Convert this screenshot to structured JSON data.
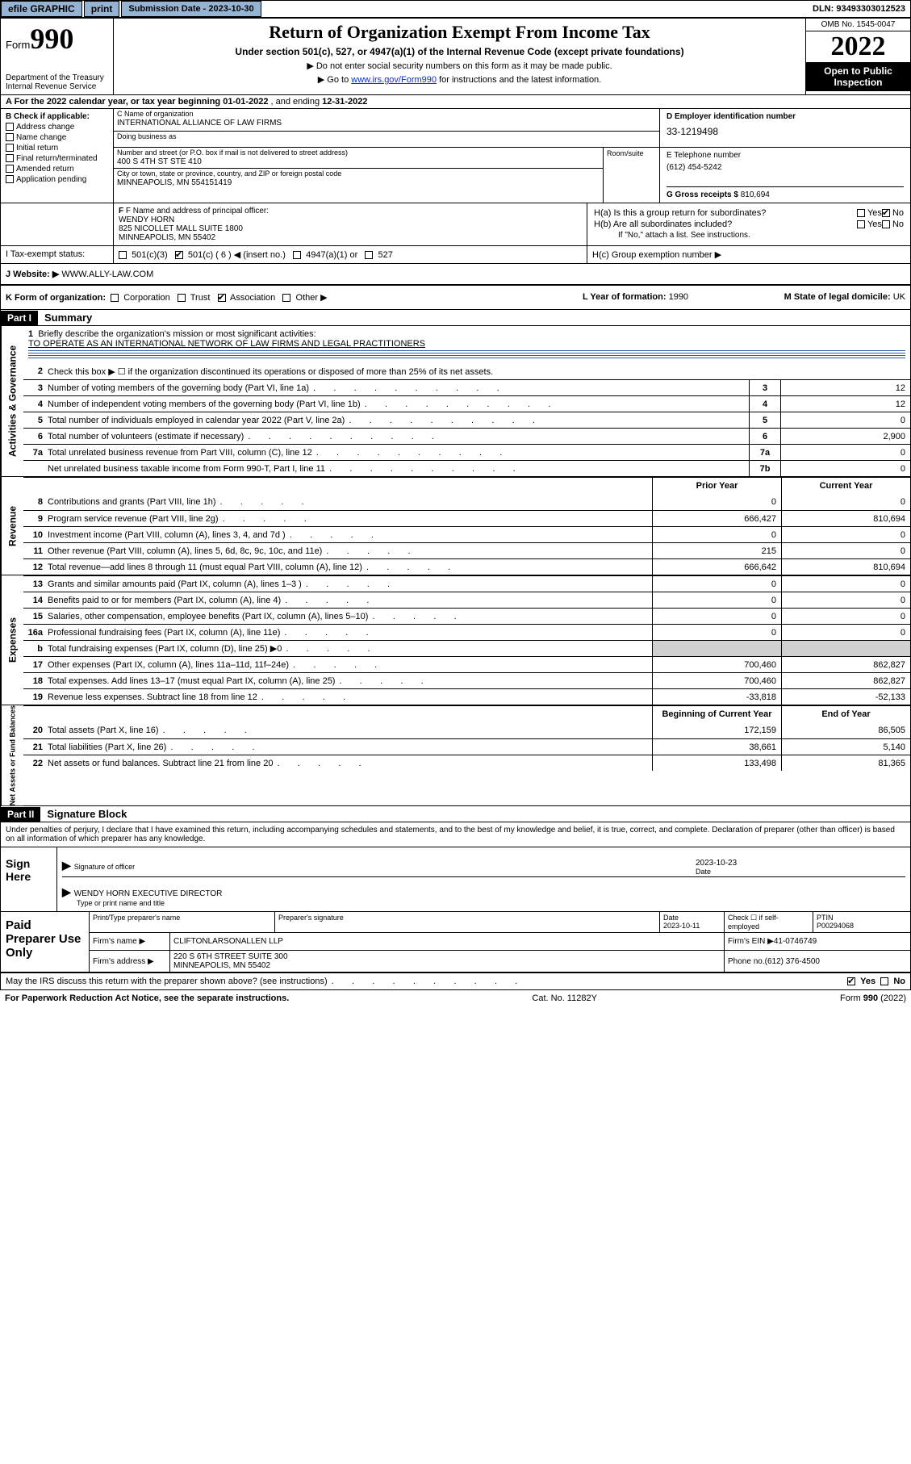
{
  "topbar": {
    "efile": "efile GRAPHIC",
    "print": "print",
    "submission": "Submission Date - 2023-10-30",
    "dln": "DLN: 93493303012523"
  },
  "header": {
    "form_label": "Form",
    "form_num": "990",
    "dept": "Department of the Treasury",
    "irs": "Internal Revenue Service",
    "title": "Return of Organization Exempt From Income Tax",
    "sub1": "Under section 501(c), 527, or 4947(a)(1) of the Internal Revenue Code (except private foundations)",
    "sub2": "▶ Do not enter social security numbers on this form as it may be made public.",
    "sub3_pre": "▶ Go to ",
    "sub3_link": "www.irs.gov/Form990",
    "sub3_post": " for instructions and the latest information.",
    "omb": "OMB No. 1545-0047",
    "year": "2022",
    "open": "Open to Public Inspection"
  },
  "period": {
    "label_a": "A For the 2022 calendar year, or tax year beginning ",
    "begin": "01-01-2022",
    "mid": " , and ending ",
    "end": "12-31-2022"
  },
  "checkB": {
    "label": "B Check if applicable:",
    "items": [
      "Address change",
      "Name change",
      "Initial return",
      "Final return/terminated",
      "Amended return",
      "Application pending"
    ]
  },
  "org": {
    "name_lbl": "C Name of organization",
    "name": "INTERNATIONAL ALLIANCE OF LAW FIRMS",
    "dba_lbl": "Doing business as",
    "addr_lbl": "Number and street (or P.O. box if mail is not delivered to street address)",
    "addr": "400 S 4TH ST STE 410",
    "room_lbl": "Room/suite",
    "city_lbl": "City or town, state or province, country, and ZIP or foreign postal code",
    "city": "MINNEAPOLIS, MN  554151419",
    "ein_lbl": "D Employer identification number",
    "ein": "33-1219498",
    "tel_lbl": "E Telephone number",
    "tel": "(612) 454-5242",
    "gross_lbl": "G Gross receipts $",
    "gross": "810,694"
  },
  "officer": {
    "lbl": "F Name and address of principal officer:",
    "name": "WENDY HORN",
    "addr1": "825 NICOLLET MALL SUITE 1800",
    "addr2": "MINNEAPOLIS, MN  55402"
  },
  "groupH": {
    "ha": "H(a)  Is this a group return for subordinates?",
    "hb": "H(b)  Are all subordinates included?",
    "hb_note": "If \"No,\" attach a list. See instructions.",
    "hc": "H(c)  Group exemption number ▶"
  },
  "status": {
    "lbl": "I    Tax-exempt status:",
    "c3": "501(c)(3)",
    "c6": "501(c) ( 6 ) ◀ (insert no.)",
    "a1": "4947(a)(1) or",
    "s527": "527"
  },
  "website": {
    "lbl": "J   Website: ▶",
    "val": "WWW.ALLY-LAW.COM"
  },
  "kform": {
    "lbl": "K Form of organization:",
    "corp": "Corporation",
    "trust": "Trust",
    "assoc": "Association",
    "other": "Other ▶",
    "yr_lbl": "L Year of formation:",
    "yr": "1990",
    "dom_lbl": "M State of legal domicile:",
    "dom": "UK"
  },
  "partI": {
    "hdr": "Part I",
    "title": "Summary"
  },
  "mission": {
    "num": "1",
    "q": "Briefly describe the organization's mission or most significant activities:",
    "a": "TO OPERATE AS AN INTERNATIONAL NETWORK OF LAW FIRMS AND LEGAL PRACTITIONERS"
  },
  "lines_gov": [
    {
      "n": "2",
      "t": "Check this box ▶ ☐ if the organization discontinued its operations or disposed of more than 25% of its net assets.",
      "box": "",
      "v": ""
    },
    {
      "n": "3",
      "t": "Number of voting members of the governing body (Part VI, line 1a)",
      "box": "3",
      "v": "12"
    },
    {
      "n": "4",
      "t": "Number of independent voting members of the governing body (Part VI, line 1b)",
      "box": "4",
      "v": "12"
    },
    {
      "n": "5",
      "t": "Total number of individuals employed in calendar year 2022 (Part V, line 2a)",
      "box": "5",
      "v": "0"
    },
    {
      "n": "6",
      "t": "Total number of volunteers (estimate if necessary)",
      "box": "6",
      "v": "2,900"
    },
    {
      "n": "7a",
      "t": "Total unrelated business revenue from Part VIII, column (C), line 12",
      "box": "7a",
      "v": "0"
    },
    {
      "n": "",
      "t": "Net unrelated business taxable income from Form 990-T, Part I, line 11",
      "box": "7b",
      "v": "0"
    }
  ],
  "colhdr": {
    "prior": "Prior Year",
    "current": "Current Year"
  },
  "lines_rev": [
    {
      "n": "8",
      "t": "Contributions and grants (Part VIII, line 1h)",
      "p": "0",
      "c": "0"
    },
    {
      "n": "9",
      "t": "Program service revenue (Part VIII, line 2g)",
      "p": "666,427",
      "c": "810,694"
    },
    {
      "n": "10",
      "t": "Investment income (Part VIII, column (A), lines 3, 4, and 7d )",
      "p": "0",
      "c": "0"
    },
    {
      "n": "11",
      "t": "Other revenue (Part VIII, column (A), lines 5, 6d, 8c, 9c, 10c, and 11e)",
      "p": "215",
      "c": "0"
    },
    {
      "n": "12",
      "t": "Total revenue—add lines 8 through 11 (must equal Part VIII, column (A), line 12)",
      "p": "666,642",
      "c": "810,694"
    }
  ],
  "lines_exp": [
    {
      "n": "13",
      "t": "Grants and similar amounts paid (Part IX, column (A), lines 1–3 )",
      "p": "0",
      "c": "0"
    },
    {
      "n": "14",
      "t": "Benefits paid to or for members (Part IX, column (A), line 4)",
      "p": "0",
      "c": "0"
    },
    {
      "n": "15",
      "t": "Salaries, other compensation, employee benefits (Part IX, column (A), lines 5–10)",
      "p": "0",
      "c": "0"
    },
    {
      "n": "16a",
      "t": "Professional fundraising fees (Part IX, column (A), line 11e)",
      "p": "0",
      "c": "0"
    },
    {
      "n": "b",
      "t": "Total fundraising expenses (Part IX, column (D), line 25) ▶0",
      "p": "",
      "c": "",
      "shade": true
    },
    {
      "n": "17",
      "t": "Other expenses (Part IX, column (A), lines 11a–11d, 11f–24e)",
      "p": "700,460",
      "c": "862,827"
    },
    {
      "n": "18",
      "t": "Total expenses. Add lines 13–17 (must equal Part IX, column (A), line 25)",
      "p": "700,460",
      "c": "862,827"
    },
    {
      "n": "19",
      "t": "Revenue less expenses. Subtract line 18 from line 12",
      "p": "-33,818",
      "c": "-52,133"
    }
  ],
  "colhdr2": {
    "prior": "Beginning of Current Year",
    "current": "End of Year"
  },
  "lines_net": [
    {
      "n": "20",
      "t": "Total assets (Part X, line 16)",
      "p": "172,159",
      "c": "86,505"
    },
    {
      "n": "21",
      "t": "Total liabilities (Part X, line 26)",
      "p": "38,661",
      "c": "5,140"
    },
    {
      "n": "22",
      "t": "Net assets or fund balances. Subtract line 21 from line 20",
      "p": "133,498",
      "c": "81,365"
    }
  ],
  "vtabs": {
    "gov": "Activities & Governance",
    "rev": "Revenue",
    "exp": "Expenses",
    "net": "Net Assets or Fund Balances"
  },
  "partII": {
    "hdr": "Part II",
    "title": "Signature Block",
    "decl": "Under penalties of perjury, I declare that I have examined this return, including accompanying schedules and statements, and to the best of my knowledge and belief, it is true, correct, and complete. Declaration of preparer (other than officer) is based on all information of which preparer has any knowledge."
  },
  "sign": {
    "here": "Sign Here",
    "sig_lbl": "Signature of officer",
    "date_lbl": "Date",
    "date": "2023-10-23",
    "name": "WENDY HORN  EXECUTIVE DIRECTOR",
    "name_lbl": "Type or print name and title"
  },
  "paid": {
    "lbl": "Paid Preparer Use Only",
    "h1": "Print/Type preparer's name",
    "h2": "Preparer's signature",
    "h3": "Date",
    "h3v": "2023-10-11",
    "h4": "Check ☐ if self-employed",
    "h5": "PTIN",
    "h5v": "P00294068",
    "firm_lbl": "Firm's name     ▶",
    "firm": "CLIFTONLARSONALLEN LLP",
    "ein_lbl": "Firm's EIN ▶",
    "ein": "41-0746749",
    "addr_lbl": "Firm's address ▶",
    "addr1": "220 S 6TH STREET SUITE 300",
    "addr2": "MINNEAPOLIS, MN  55402",
    "phone_lbl": "Phone no.",
    "phone": "(612) 376-4500"
  },
  "footer": {
    "q": "May the IRS discuss this return with the preparer shown above? (see instructions)",
    "yes": "Yes",
    "no": "No",
    "pra": "For Paperwork Reduction Act Notice, see the separate instructions.",
    "cat": "Cat. No. 11282Y",
    "form": "Form 990 (2022)"
  }
}
